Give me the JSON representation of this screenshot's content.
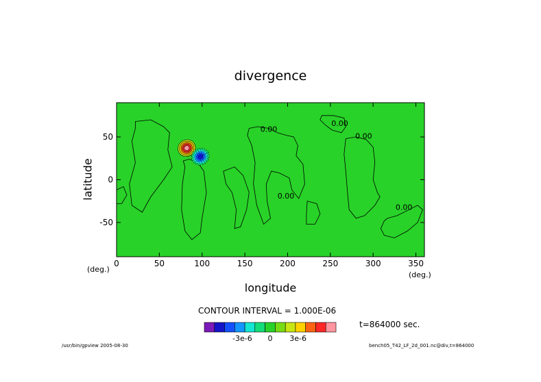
{
  "chart_data": {
    "type": "heatmap",
    "title": "divergence",
    "xlabel": "longitude",
    "ylabel": "latitude",
    "x_unit": "(deg.)",
    "y_unit": "(deg.)",
    "xlim": [
      0,
      360
    ],
    "ylim": [
      -90,
      90
    ],
    "x_ticks": [
      0,
      50,
      100,
      150,
      200,
      250,
      300,
      350
    ],
    "y_ticks": [
      50,
      0,
      -50
    ],
    "contour_interval_label": "CONTOUR INTERVAL = 1.000E-06",
    "time_label": "t=864000 sec.",
    "colorbar": {
      "levels": [
        -6e-06,
        -5e-06,
        -4e-06,
        -3e-06,
        -2e-06,
        -1e-06,
        0,
        1e-06,
        2e-06,
        3e-06,
        4e-06,
        5e-06,
        6e-06
      ],
      "colors": [
        "#7a1ab8",
        "#1414c8",
        "#1450ff",
        "#1496ff",
        "#14e6d2",
        "#14dc78",
        "#28d228",
        "#78dc14",
        "#c8e614",
        "#ffd200",
        "#ff6414",
        "#ff2828",
        "#ff96a0"
      ],
      "tick_labels": [
        "-3e-6",
        "0",
        "3e-6"
      ],
      "tick_values": [
        -3e-06,
        0,
        3e-06
      ]
    },
    "contour_labels": [
      {
        "text": "0.00",
        "lon": 178,
        "lat": 56
      },
      {
        "text": "0.00",
        "lon": 261,
        "lat": 63
      },
      {
        "text": "0.00",
        "lon": 289,
        "lat": 48
      },
      {
        "text": "0.00",
        "lon": 198,
        "lat": -22
      },
      {
        "text": "0.00",
        "lon": 336,
        "lat": -35
      }
    ],
    "features": {
      "near_zero_regions": [
        [
          [
            22,
            68
          ],
          [
            40,
            70
          ],
          [
            55,
            62
          ],
          [
            62,
            55
          ],
          [
            60,
            35
          ],
          [
            65,
            15
          ],
          [
            55,
            0
          ],
          [
            40,
            -20
          ],
          [
            30,
            -38
          ],
          [
            18,
            -30
          ],
          [
            15,
            -5
          ],
          [
            22,
            20
          ],
          [
            18,
            45
          ],
          [
            22,
            60
          ]
        ],
        [
          [
            78,
            22
          ],
          [
            85,
            24
          ],
          [
            95,
            20
          ],
          [
            102,
            10
          ],
          [
            105,
            -15
          ],
          [
            100,
            -45
          ],
          [
            98,
            -62
          ],
          [
            88,
            -70
          ],
          [
            80,
            -60
          ],
          [
            76,
            -35
          ],
          [
            77,
            -5
          ],
          [
            80,
            15
          ]
        ],
        [
          [
            125,
            10
          ],
          [
            138,
            15
          ],
          [
            148,
            5
          ],
          [
            155,
            -15
          ],
          [
            152,
            -35
          ],
          [
            145,
            -55
          ],
          [
            138,
            -57
          ],
          [
            140,
            -35
          ],
          [
            135,
            -15
          ],
          [
            128,
            -5
          ],
          [
            126,
            5
          ]
        ],
        [
          [
            155,
            60
          ],
          [
            165,
            62
          ],
          [
            178,
            60
          ],
          [
            188,
            55
          ],
          [
            198,
            52
          ],
          [
            207,
            50
          ],
          [
            212,
            40
          ],
          [
            210,
            28
          ],
          [
            218,
            18
          ],
          [
            220,
            -5
          ],
          [
            213,
            -22
          ],
          [
            205,
            -12
          ],
          [
            202,
            2
          ],
          [
            190,
            8
          ],
          [
            181,
            10
          ],
          [
            175,
            -5
          ],
          [
            176,
            -25
          ],
          [
            180,
            -45
          ],
          [
            172,
            -52
          ],
          [
            164,
            -30
          ],
          [
            160,
            -5
          ],
          [
            162,
            20
          ],
          [
            158,
            40
          ],
          [
            153,
            52
          ]
        ],
        [
          [
            240,
            75
          ],
          [
            254,
            75
          ],
          [
            266,
            72
          ],
          [
            268,
            62
          ],
          [
            263,
            55
          ],
          [
            252,
            58
          ],
          [
            244,
            64
          ],
          [
            238,
            70
          ]
        ],
        [
          [
            268,
            48
          ],
          [
            280,
            50
          ],
          [
            292,
            47
          ],
          [
            300,
            38
          ],
          [
            302,
            20
          ],
          [
            300,
            0
          ],
          [
            305,
            -15
          ],
          [
            308,
            -20
          ],
          [
            302,
            -30
          ],
          [
            290,
            -42
          ],
          [
            280,
            -45
          ],
          [
            272,
            -35
          ],
          [
            270,
            -15
          ],
          [
            268,
            10
          ],
          [
            266,
            30
          ]
        ],
        [
          [
            223,
            -25
          ],
          [
            234,
            -28
          ],
          [
            238,
            -40
          ],
          [
            232,
            -52
          ],
          [
            222,
            -52
          ],
          [
            222,
            -40
          ]
        ],
        [
          [
            317,
            -45
          ],
          [
            328,
            -42
          ],
          [
            342,
            -35
          ],
          [
            352,
            -30
          ],
          [
            358,
            -35
          ],
          [
            352,
            -50
          ],
          [
            340,
            -60
          ],
          [
            325,
            -68
          ],
          [
            313,
            -65
          ],
          [
            309,
            -57
          ],
          [
            313,
            -48
          ]
        ],
        [
          [
            0,
            -12
          ],
          [
            8,
            -8
          ],
          [
            12,
            -18
          ],
          [
            6,
            -28
          ],
          [
            0,
            -28
          ]
        ]
      ],
      "dipole": {
        "positive": {
          "lon": 82,
          "lat": 37,
          "peak": 5e-06
        },
        "negative": {
          "lon": 98,
          "lat": 27,
          "peak": -5e-06
        }
      }
    }
  },
  "footer": {
    "left": "/usr/bin/gpview  2005-08-30",
    "right": "bench05_T42_LF_2d_001.nc@div,t=864000"
  }
}
